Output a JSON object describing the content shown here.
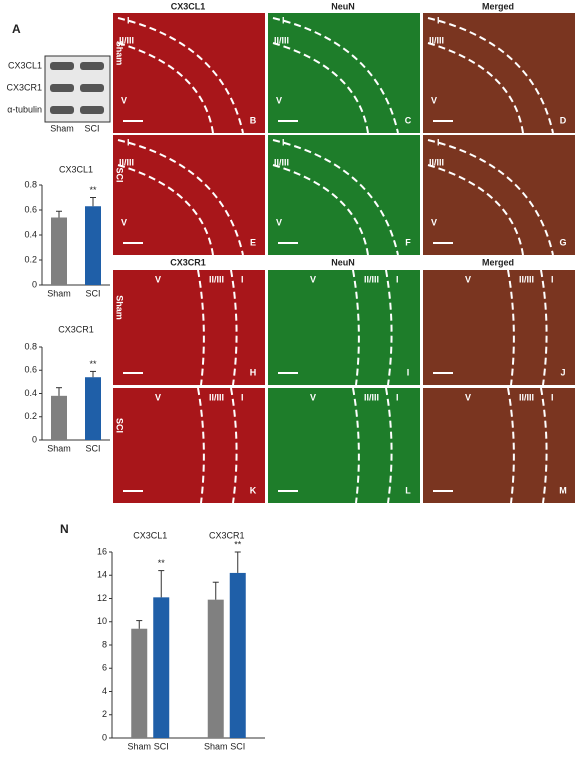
{
  "blot": {
    "label": "A",
    "rows": [
      "CX3CL1",
      "CX3CR1",
      "α-tubulin"
    ],
    "lanes": [
      "Sham",
      "SCI"
    ]
  },
  "micrographs": [
    {
      "headers": [
        "CX3CL1",
        "NeuN",
        "Merged"
      ],
      "layers": [
        "I",
        "II/III",
        "V"
      ],
      "rows": [
        {
          "label": "Sham",
          "panels": [
            "B",
            "C",
            "D"
          ]
        },
        {
          "label": "SCI",
          "panels": [
            "E",
            "F",
            "G"
          ]
        }
      ]
    },
    {
      "headers": [
        "CX3CR1",
        "NeuN",
        "Merged"
      ],
      "layers": [
        "V",
        "II/III",
        "I"
      ],
      "rows": [
        {
          "label": "Sham",
          "panels": [
            "H",
            "I",
            "J"
          ]
        },
        {
          "label": "SCI",
          "panels": [
            "K",
            "L",
            "M"
          ]
        }
      ]
    }
  ],
  "panel_n_label": "N",
  "chart_data": [
    {
      "type": "bar",
      "title": "CX3CL1",
      "categories": [
        "Sham",
        "SCI"
      ],
      "values": [
        0.54,
        0.63
      ],
      "errors": [
        0.05,
        0.07
      ],
      "colors": [
        "#808080",
        "#1f5fa8"
      ],
      "ylim": [
        0,
        0.8
      ],
      "yticks": [
        0,
        0.2,
        0.4,
        0.6,
        0.8
      ],
      "annotation": "**"
    },
    {
      "type": "bar",
      "title": "CX3CR1",
      "categories": [
        "Sham",
        "SCI"
      ],
      "values": [
        0.38,
        0.54
      ],
      "errors": [
        0.07,
        0.05
      ],
      "colors": [
        "#808080",
        "#1f5fa8"
      ],
      "ylim": [
        0,
        0.8
      ],
      "yticks": [
        0,
        0.2,
        0.4,
        0.6,
        0.8
      ],
      "annotation": "**"
    },
    {
      "type": "grouped-bar",
      "groups": [
        "CX3CL1",
        "CX3CR1"
      ],
      "series": [
        {
          "name": "Sham",
          "color": "#808080",
          "values": [
            9.4,
            11.9
          ],
          "errors": [
            0.7,
            1.5
          ]
        },
        {
          "name": "SCI",
          "color": "#1f5fa8",
          "values": [
            12.1,
            14.2
          ],
          "errors": [
            2.3,
            1.8
          ]
        }
      ],
      "ylim": [
        0,
        16
      ],
      "yticks": [
        0,
        2,
        4,
        6,
        8,
        10,
        12,
        14,
        16
      ],
      "annotation": "**"
    }
  ]
}
